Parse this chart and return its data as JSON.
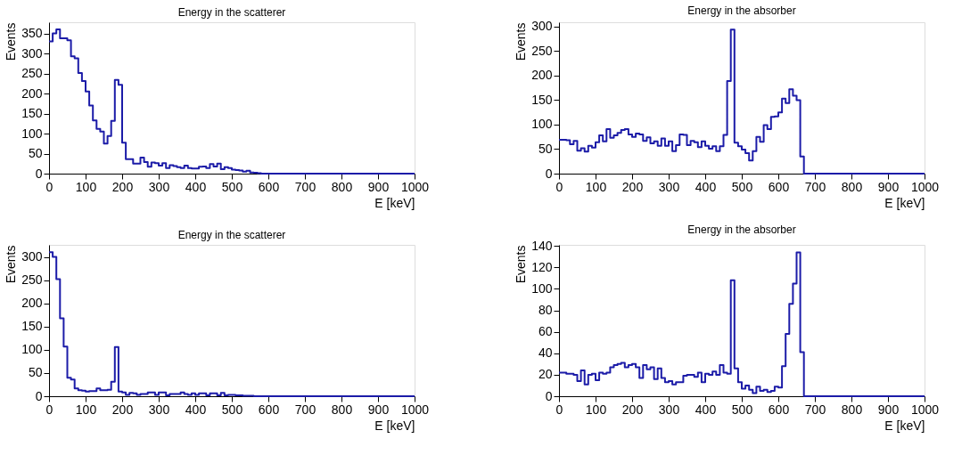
{
  "chart_data": [
    {
      "type": "histogram",
      "title": "Energy in the scatterer",
      "xlabel": "E [keV]",
      "ylabel": "Events",
      "color": "#1c1ca8",
      "grid": false,
      "bins": [
        0,
        10,
        20,
        30,
        40,
        50,
        60,
        70,
        80,
        90,
        100,
        110,
        120,
        130,
        140,
        150,
        160,
        170,
        180,
        190,
        200,
        210,
        220,
        230,
        240,
        250,
        260,
        270,
        280,
        290,
        300,
        310,
        320,
        330,
        340,
        350,
        360,
        370,
        380,
        390,
        400,
        410,
        420,
        430,
        440,
        450,
        460,
        470,
        480,
        490,
        500,
        510,
        520,
        530,
        540,
        550,
        560,
        570,
        580,
        590,
        600,
        610,
        620,
        630,
        640,
        650,
        660,
        670,
        680,
        690,
        700,
        710,
        720,
        730,
        740,
        750,
        760,
        770,
        780,
        790,
        800,
        810,
        820,
        830,
        840,
        850,
        860,
        870,
        880,
        890,
        900,
        910,
        920,
        930,
        940,
        950,
        960,
        970,
        980,
        990,
        1000
      ],
      "values": [
        330,
        350,
        360,
        338,
        338,
        333,
        293,
        288,
        251,
        231,
        205,
        170,
        133,
        112,
        105,
        75,
        94,
        132,
        234,
        222,
        77,
        36,
        36,
        25,
        25,
        40,
        29,
        17,
        28,
        26,
        20,
        26,
        14,
        21,
        19,
        16,
        14,
        20,
        14,
        13,
        13,
        17,
        18,
        14,
        24,
        18,
        25,
        11,
        16,
        14,
        10,
        9,
        8,
        5,
        7,
        3,
        2,
        1,
        0,
        0,
        0,
        0,
        0,
        0,
        0,
        0,
        0,
        0,
        0,
        0,
        0,
        0,
        0,
        0,
        0,
        0,
        0,
        0,
        0,
        0,
        0,
        0,
        0,
        0,
        0,
        0,
        0,
        0,
        0,
        0,
        0,
        0,
        0,
        0,
        0,
        0,
        0,
        0,
        0,
        0
      ],
      "xlim": [
        0,
        1000
      ],
      "ylim": [
        0,
        378
      ],
      "xticks": [
        0,
        100,
        200,
        300,
        400,
        500,
        600,
        700,
        800,
        900,
        1000
      ],
      "yticks": [
        0,
        50,
        100,
        150,
        200,
        250,
        300,
        350
      ]
    },
    {
      "type": "histogram",
      "title": "Energy in the absorber",
      "xlabel": "E [keV]",
      "ylabel": "Events",
      "color": "#1c1ca8",
      "grid": false,
      "bins": [
        0,
        10,
        20,
        30,
        40,
        50,
        60,
        70,
        80,
        90,
        100,
        110,
        120,
        130,
        140,
        150,
        160,
        170,
        180,
        190,
        200,
        210,
        220,
        230,
        240,
        250,
        260,
        270,
        280,
        290,
        300,
        310,
        320,
        330,
        340,
        350,
        360,
        370,
        380,
        390,
        400,
        410,
        420,
        430,
        440,
        450,
        460,
        470,
        480,
        490,
        500,
        510,
        520,
        530,
        540,
        550,
        560,
        570,
        580,
        590,
        600,
        610,
        620,
        630,
        640,
        650,
        660,
        670,
        680,
        690,
        700,
        710,
        720,
        730,
        740,
        750,
        760,
        770,
        780,
        790,
        800,
        810,
        820,
        830,
        840,
        850,
        860,
        870,
        880,
        890,
        900,
        910,
        920,
        930,
        940,
        950,
        960,
        970,
        980,
        990,
        1000
      ],
      "values": [
        69,
        69,
        68,
        60,
        67,
        47,
        52,
        45,
        57,
        53,
        64,
        78,
        66,
        91,
        73,
        78,
        83,
        89,
        91,
        80,
        75,
        82,
        80,
        67,
        74,
        62,
        66,
        57,
        72,
        57,
        66,
        46,
        58,
        80,
        79,
        58,
        67,
        64,
        54,
        66,
        57,
        51,
        56,
        46,
        56,
        79,
        189,
        294,
        63,
        56,
        49,
        42,
        27,
        46,
        75,
        65,
        99,
        91,
        116,
        117,
        125,
        153,
        144,
        172,
        159,
        150,
        35,
        0,
        0,
        0,
        0,
        0,
        0,
        0,
        0,
        0,
        0,
        0,
        0,
        0,
        0,
        0,
        0,
        0,
        0,
        0,
        0,
        0,
        0,
        0,
        0,
        0,
        0,
        0,
        0,
        0,
        0,
        0,
        0,
        0
      ],
      "xlim": [
        0,
        1000
      ],
      "ylim": [
        0,
        309
      ],
      "xticks": [
        0,
        100,
        200,
        300,
        400,
        500,
        600,
        700,
        800,
        900,
        1000
      ],
      "yticks": [
        0,
        50,
        100,
        150,
        200,
        250,
        300
      ]
    },
    {
      "type": "histogram",
      "title": "Energy in the scatterer",
      "xlabel": "E [keV]",
      "ylabel": "Events",
      "color": "#1c1ca8",
      "grid": false,
      "bins": [
        0,
        10,
        20,
        30,
        40,
        50,
        60,
        70,
        80,
        90,
        100,
        110,
        120,
        130,
        140,
        150,
        160,
        170,
        180,
        190,
        200,
        210,
        220,
        230,
        240,
        250,
        260,
        270,
        280,
        290,
        300,
        310,
        320,
        330,
        340,
        350,
        360,
        370,
        380,
        390,
        400,
        410,
        420,
        430,
        440,
        450,
        460,
        470,
        480,
        490,
        500,
        510,
        520,
        530,
        540,
        550,
        560,
        570,
        580,
        590,
        600,
        610,
        620,
        630,
        640,
        650,
        660,
        670,
        680,
        690,
        700,
        710,
        720,
        730,
        740,
        750,
        760,
        770,
        780,
        790,
        800,
        810,
        820,
        830,
        840,
        850,
        860,
        870,
        880,
        890,
        900,
        910,
        920,
        930,
        940,
        950,
        960,
        970,
        980,
        990,
        1000
      ],
      "values": [
        310,
        300,
        252,
        168,
        107,
        40,
        36,
        17,
        13,
        12,
        10,
        11,
        11,
        17,
        13,
        13,
        14,
        31,
        106,
        10,
        8,
        3,
        7,
        6,
        3,
        5,
        5,
        8,
        8,
        3,
        8,
        8,
        2,
        5,
        5,
        5,
        8,
        5,
        3,
        6,
        3,
        6,
        6,
        2,
        6,
        6,
        2,
        7,
        2,
        3,
        3,
        2,
        2,
        1,
        1,
        1,
        0,
        0,
        0,
        0,
        0,
        0,
        0,
        0,
        0,
        0,
        0,
        0,
        0,
        0,
        0,
        0,
        0,
        0,
        0,
        0,
        0,
        0,
        0,
        0,
        0,
        0,
        0,
        0,
        0,
        0,
        0,
        0,
        0,
        0,
        0,
        0,
        0,
        0,
        0,
        0,
        0,
        0,
        0,
        0
      ],
      "xlim": [
        0,
        1000
      ],
      "ylim": [
        0,
        326
      ],
      "xticks": [
        0,
        100,
        200,
        300,
        400,
        500,
        600,
        700,
        800,
        900,
        1000
      ],
      "yticks": [
        0,
        50,
        100,
        150,
        200,
        250,
        300
      ]
    },
    {
      "type": "histogram",
      "title": "Energy in the absorber",
      "xlabel": "E [keV]",
      "ylabel": "Events",
      "color": "#1c1ca8",
      "grid": false,
      "bins": [
        0,
        10,
        20,
        30,
        40,
        50,
        60,
        70,
        80,
        90,
        100,
        110,
        120,
        130,
        140,
        150,
        160,
        170,
        180,
        190,
        200,
        210,
        220,
        230,
        240,
        250,
        260,
        270,
        280,
        290,
        300,
        310,
        320,
        330,
        340,
        350,
        360,
        370,
        380,
        390,
        400,
        410,
        420,
        430,
        440,
        450,
        460,
        470,
        480,
        490,
        500,
        510,
        520,
        530,
        540,
        550,
        560,
        570,
        580,
        590,
        600,
        610,
        620,
        630,
        640,
        650,
        660,
        670,
        680,
        690,
        700,
        710,
        720,
        730,
        740,
        750,
        760,
        770,
        780,
        790,
        800,
        810,
        820,
        830,
        840,
        850,
        860,
        870,
        880,
        890,
        900,
        910,
        920,
        930,
        940,
        950,
        960,
        970,
        980,
        990,
        1000
      ],
      "values": [
        22,
        22,
        21,
        21,
        20,
        14,
        24,
        11,
        20,
        21,
        15,
        22,
        21,
        22,
        27,
        29,
        30,
        31,
        27,
        29,
        30,
        27,
        17,
        29,
        25,
        27,
        16,
        26,
        17,
        13,
        14,
        11,
        13,
        13,
        19,
        20,
        20,
        18,
        22,
        13,
        21,
        20,
        23,
        20,
        29,
        22,
        21,
        108,
        26,
        13,
        7,
        10,
        6,
        3,
        9,
        5,
        6,
        4,
        5,
        9,
        8,
        28,
        58,
        86,
        105,
        134,
        41,
        0,
        0,
        0,
        0,
        0,
        0,
        0,
        0,
        0,
        0,
        0,
        0,
        0,
        0,
        0,
        0,
        0,
        0,
        0,
        0,
        0,
        0,
        0,
        0,
        0,
        0,
        0,
        0,
        0,
        0,
        0,
        0,
        0
      ],
      "xlim": [
        0,
        1000
      ],
      "ylim": [
        0,
        141
      ],
      "xticks": [
        0,
        100,
        200,
        300,
        400,
        500,
        600,
        700,
        800,
        900,
        1000
      ],
      "yticks": [
        0,
        20,
        40,
        60,
        80,
        100,
        120,
        140
      ]
    }
  ]
}
